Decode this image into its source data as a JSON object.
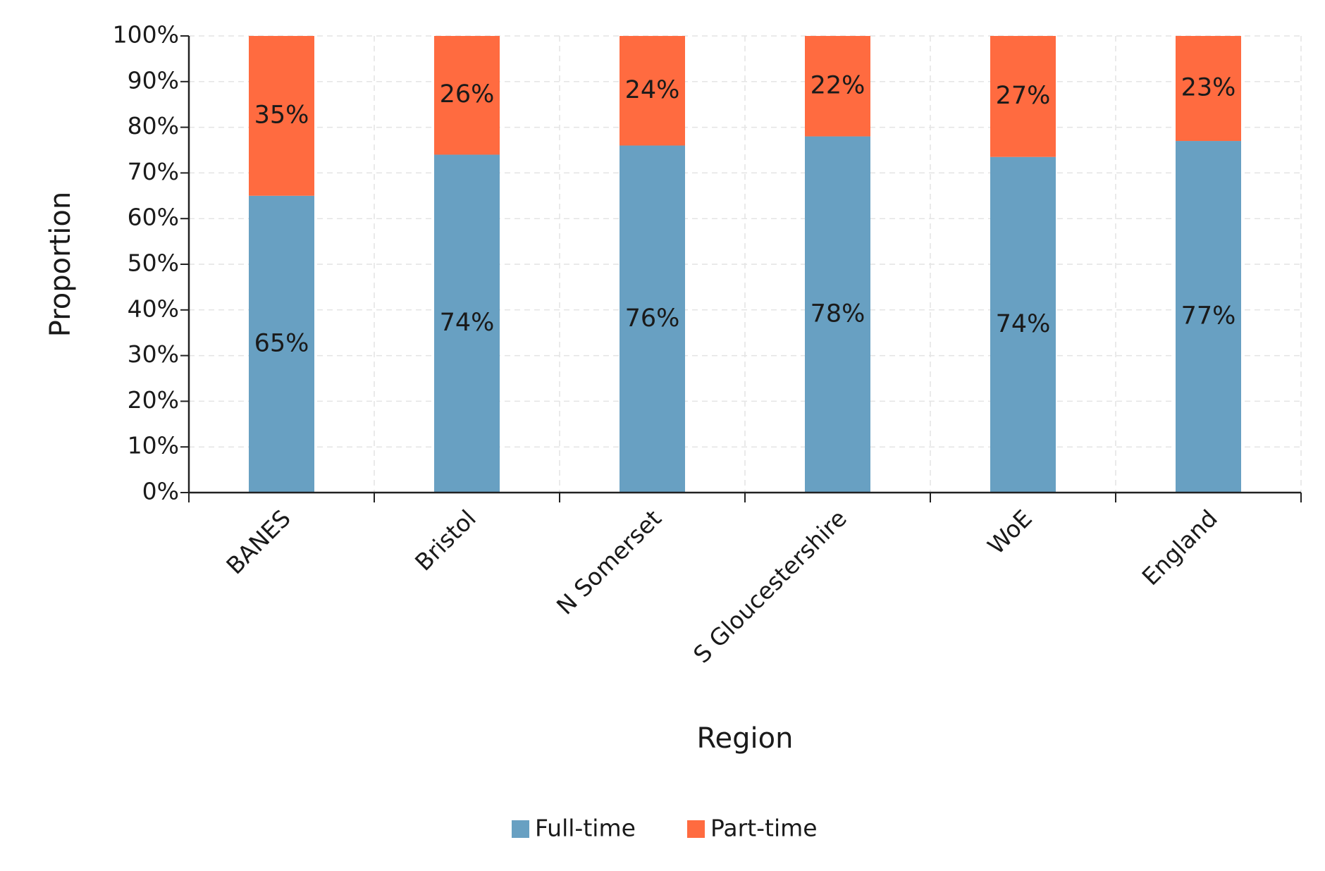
{
  "chart_data": {
    "type": "stacked_bar",
    "x_label": "Region",
    "y_label": "Proportion",
    "categories": [
      "BANES",
      "Bristol",
      "N Somerset",
      "S Gloucestershire",
      "WoE",
      "England"
    ],
    "series": [
      {
        "name": "Full-time",
        "color": "#68a0c2",
        "values": [
          65,
          74,
          76,
          78,
          73.5,
          77
        ],
        "value_labels": [
          "65%",
          "74%",
          "76%",
          "78%",
          "74%",
          "77%"
        ]
      },
      {
        "name": "Part-time",
        "color": "#ff6b40",
        "values": [
          35,
          26,
          24,
          22,
          26.5,
          23
        ],
        "value_labels": [
          "35%",
          "26%",
          "24%",
          "22%",
          "27%",
          "23%"
        ]
      }
    ],
    "ylim": [
      0,
      100
    ],
    "yticks": [
      {
        "value": 0,
        "label": "0%"
      },
      {
        "value": 10,
        "label": "10%"
      },
      {
        "value": 20,
        "label": "20%"
      },
      {
        "value": 30,
        "label": "30%"
      },
      {
        "value": 40,
        "label": "40%"
      },
      {
        "value": 50,
        "label": "50%"
      },
      {
        "value": 60,
        "label": "60%"
      },
      {
        "value": 70,
        "label": "70%"
      },
      {
        "value": 80,
        "label": "80%"
      },
      {
        "value": 90,
        "label": "90%"
      },
      {
        "value": 100,
        "label": "100%"
      }
    ],
    "grid": true,
    "legend": "bottom"
  }
}
